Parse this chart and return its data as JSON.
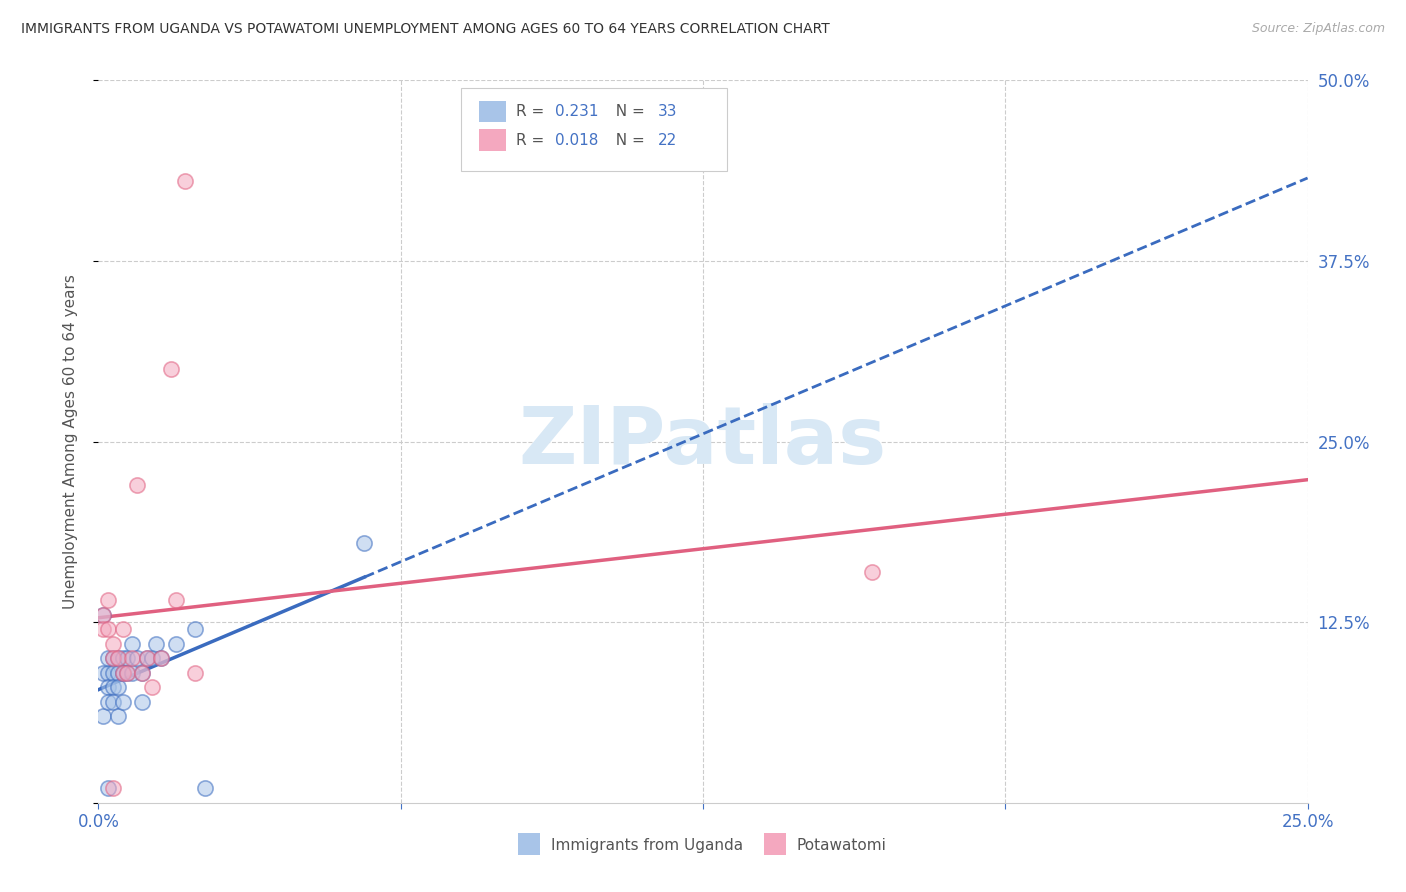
{
  "title": "IMMIGRANTS FROM UGANDA VS POTAWATOMI UNEMPLOYMENT AMONG AGES 60 TO 64 YEARS CORRELATION CHART",
  "source": "Source: ZipAtlas.com",
  "ylabel_label": "Unemployment Among Ages 60 to 64 years",
  "xlim": [
    0.0,
    0.25
  ],
  "ylim": [
    0.0,
    0.5
  ],
  "blue_color": "#a8c4e8",
  "pink_color": "#f4a8bf",
  "blue_line_color": "#3a6bbf",
  "pink_line_color": "#e06080",
  "axis_label_color": "#4472c4",
  "grid_color": "#cccccc",
  "watermark_color": "#d8e8f5",
  "uganda_x": [
    0.001,
    0.001,
    0.001,
    0.002,
    0.002,
    0.002,
    0.002,
    0.003,
    0.003,
    0.003,
    0.003,
    0.004,
    0.004,
    0.004,
    0.004,
    0.005,
    0.005,
    0.005,
    0.006,
    0.006,
    0.007,
    0.007,
    0.008,
    0.009,
    0.009,
    0.01,
    0.011,
    0.012,
    0.013,
    0.016,
    0.02,
    0.022,
    0.055,
    0.002
  ],
  "uganda_y": [
    0.13,
    0.09,
    0.06,
    0.09,
    0.1,
    0.08,
    0.07,
    0.1,
    0.09,
    0.08,
    0.07,
    0.1,
    0.09,
    0.08,
    0.06,
    0.1,
    0.09,
    0.07,
    0.1,
    0.09,
    0.11,
    0.09,
    0.1,
    0.09,
    0.07,
    0.1,
    0.1,
    0.11,
    0.1,
    0.11,
    0.12,
    0.01,
    0.18,
    0.01
  ],
  "potawatomi_x": [
    0.001,
    0.001,
    0.002,
    0.002,
    0.003,
    0.003,
    0.003,
    0.004,
    0.005,
    0.005,
    0.006,
    0.007,
    0.008,
    0.009,
    0.01,
    0.011,
    0.013,
    0.015,
    0.016,
    0.018,
    0.02,
    0.16
  ],
  "potawatomi_y": [
    0.13,
    0.12,
    0.12,
    0.14,
    0.11,
    0.1,
    0.01,
    0.1,
    0.12,
    0.09,
    0.09,
    0.1,
    0.22,
    0.09,
    0.1,
    0.08,
    0.1,
    0.3,
    0.14,
    0.43,
    0.09,
    0.16
  ]
}
